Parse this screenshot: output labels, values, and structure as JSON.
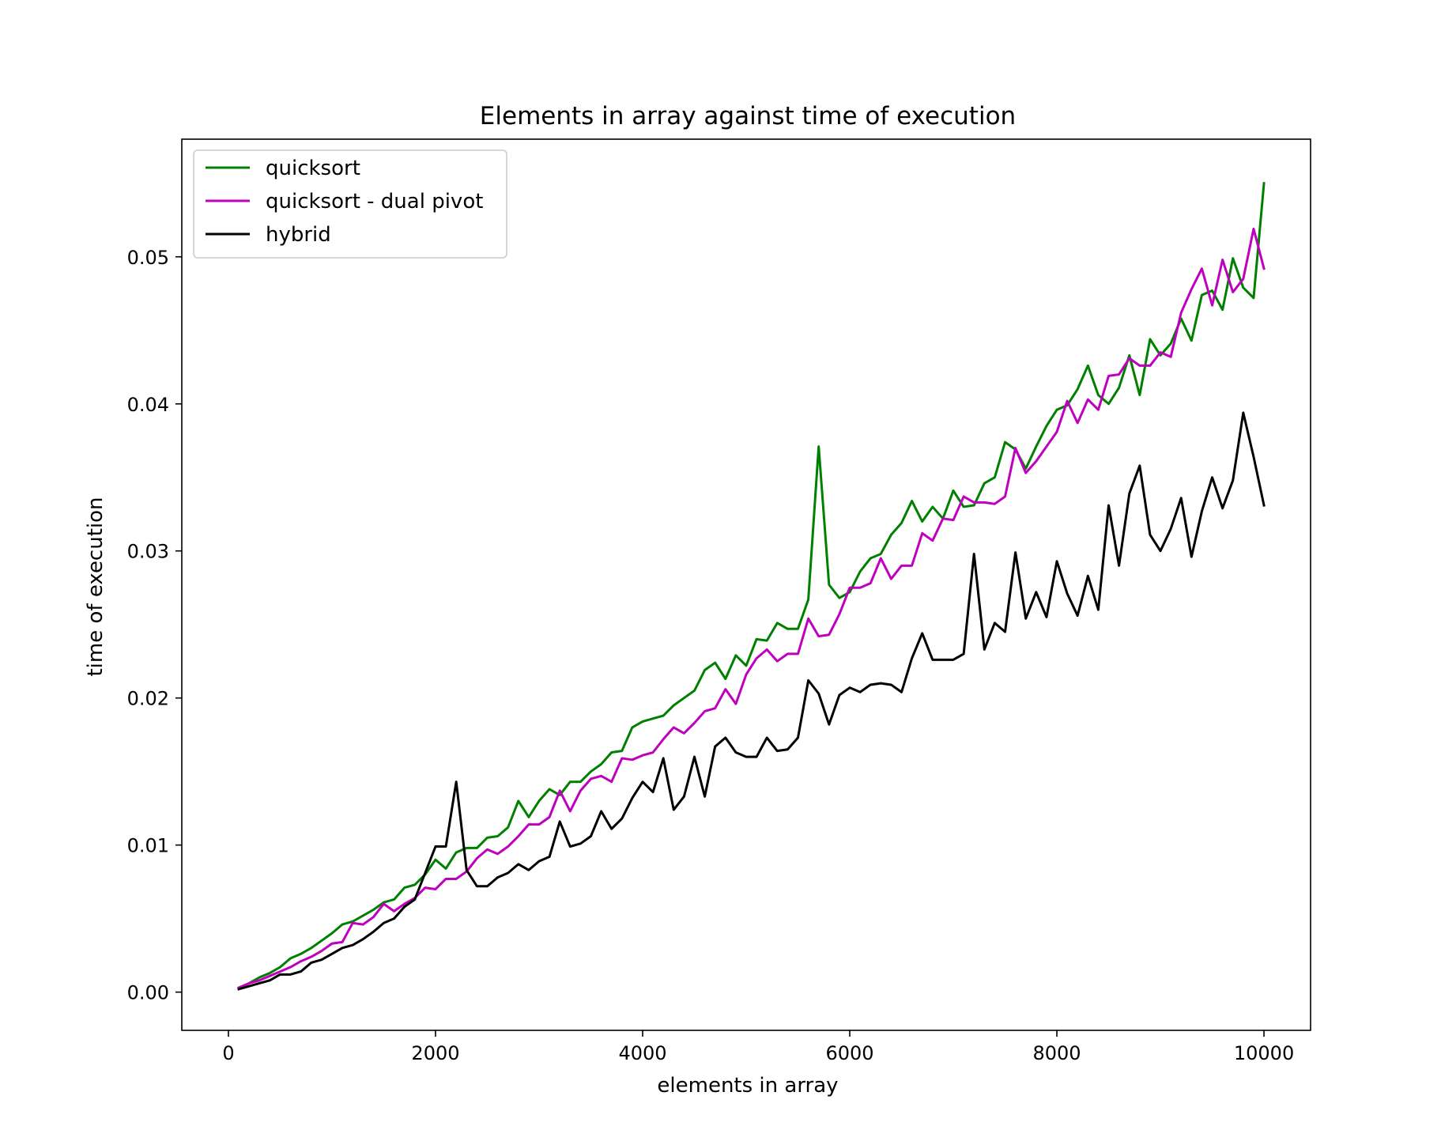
{
  "chart_data": {
    "type": "line",
    "title": "Elements in array against time of execution",
    "xlabel": "elements in array",
    "ylabel": "time of execution",
    "xlim": [
      -450,
      10450
    ],
    "ylim": [
      -0.0026,
      0.058
    ],
    "xticks": [
      0,
      2000,
      4000,
      6000,
      8000,
      10000
    ],
    "xtick_labels": [
      "0",
      "2000",
      "4000",
      "6000",
      "8000",
      "10000"
    ],
    "yticks": [
      0.0,
      0.01,
      0.02,
      0.03,
      0.04,
      0.05
    ],
    "ytick_labels": [
      "0.00",
      "0.01",
      "0.02",
      "0.03",
      "0.04",
      "0.05"
    ],
    "grid": false,
    "legend_position": "upper-left",
    "x": [
      100,
      200,
      300,
      400,
      500,
      600,
      700,
      800,
      900,
      1000,
      1100,
      1200,
      1300,
      1400,
      1500,
      1600,
      1700,
      1800,
      1900,
      2000,
      2100,
      2200,
      2300,
      2400,
      2500,
      2600,
      2700,
      2800,
      2900,
      3000,
      3100,
      3200,
      3300,
      3400,
      3500,
      3600,
      3700,
      3800,
      3900,
      4000,
      4100,
      4200,
      4300,
      4400,
      4500,
      4600,
      4700,
      4800,
      4900,
      5000,
      5100,
      5200,
      5300,
      5400,
      5500,
      5600,
      5700,
      5800,
      5900,
      6000,
      6100,
      6200,
      6300,
      6400,
      6500,
      6600,
      6700,
      6800,
      6900,
      7000,
      7100,
      7200,
      7300,
      7400,
      7500,
      7600,
      7700,
      7800,
      7900,
      8000,
      8100,
      8200,
      8300,
      8400,
      8500,
      8600,
      8700,
      8800,
      8900,
      9000,
      9100,
      9200,
      9300,
      9400,
      9500,
      9600,
      9700,
      9800,
      9900,
      10000
    ],
    "series": [
      {
        "name": "quicksort",
        "color": "#008000",
        "values": [
          0.0003,
          0.0006,
          0.001,
          0.0013,
          0.0017,
          0.0023,
          0.0026,
          0.003,
          0.0035,
          0.004,
          0.0046,
          0.0048,
          0.0052,
          0.0056,
          0.0061,
          0.0063,
          0.0071,
          0.0073,
          0.008,
          0.009,
          0.0084,
          0.0095,
          0.0098,
          0.0098,
          0.0105,
          0.0106,
          0.0112,
          0.013,
          0.0119,
          0.013,
          0.0138,
          0.0134,
          0.0143,
          0.0143,
          0.015,
          0.0155,
          0.0163,
          0.0164,
          0.018,
          0.0184,
          0.0186,
          0.0188,
          0.0195,
          0.02,
          0.0205,
          0.0219,
          0.0224,
          0.0213,
          0.0229,
          0.0222,
          0.024,
          0.0239,
          0.0251,
          0.0247,
          0.0247,
          0.0267,
          0.0371,
          0.0277,
          0.0268,
          0.0272,
          0.0286,
          0.0295,
          0.0298,
          0.0311,
          0.0319,
          0.0334,
          0.032,
          0.033,
          0.0322,
          0.0341,
          0.033,
          0.0331,
          0.0346,
          0.035,
          0.0374,
          0.0369,
          0.0356,
          0.0371,
          0.0385,
          0.0396,
          0.0399,
          0.041,
          0.0426,
          0.0406,
          0.04,
          0.0411,
          0.0433,
          0.0406,
          0.0444,
          0.0433,
          0.0441,
          0.0458,
          0.0443,
          0.0474,
          0.0477,
          0.0464,
          0.0499,
          0.0479,
          0.0472,
          0.055
        ]
      },
      {
        "name": "quicksort - dual pivot",
        "color": "#bf00bf",
        "values": [
          0.0003,
          0.0006,
          0.0008,
          0.0011,
          0.0014,
          0.0017,
          0.0021,
          0.0024,
          0.0028,
          0.0033,
          0.0034,
          0.0047,
          0.0046,
          0.0051,
          0.006,
          0.0055,
          0.006,
          0.0064,
          0.0071,
          0.007,
          0.0077,
          0.0077,
          0.0082,
          0.0091,
          0.0097,
          0.0094,
          0.0099,
          0.0106,
          0.0114,
          0.0114,
          0.0119,
          0.0137,
          0.0123,
          0.0137,
          0.0145,
          0.0147,
          0.0143,
          0.0159,
          0.0158,
          0.0161,
          0.0163,
          0.0172,
          0.018,
          0.0176,
          0.0183,
          0.0191,
          0.0193,
          0.0206,
          0.0196,
          0.0216,
          0.0227,
          0.0233,
          0.0225,
          0.023,
          0.023,
          0.0254,
          0.0242,
          0.0243,
          0.0257,
          0.0275,
          0.0275,
          0.0278,
          0.0295,
          0.0281,
          0.029,
          0.029,
          0.0312,
          0.0307,
          0.0322,
          0.0321,
          0.0337,
          0.0333,
          0.0333,
          0.0332,
          0.0337,
          0.037,
          0.0353,
          0.0361,
          0.0371,
          0.0381,
          0.0402,
          0.0387,
          0.0403,
          0.0396,
          0.0419,
          0.042,
          0.0431,
          0.0426,
          0.0426,
          0.0435,
          0.0432,
          0.0462,
          0.0478,
          0.0492,
          0.0467,
          0.0498,
          0.0476,
          0.0485,
          0.0519,
          0.0492
        ]
      },
      {
        "name": "hybrid",
        "color": "#000000",
        "values": [
          0.0002,
          0.0004,
          0.0006,
          0.0008,
          0.0012,
          0.0012,
          0.0014,
          0.002,
          0.0022,
          0.0026,
          0.003,
          0.0032,
          0.0036,
          0.0041,
          0.0047,
          0.005,
          0.0058,
          0.0063,
          0.0081,
          0.0099,
          0.0099,
          0.0143,
          0.0083,
          0.0072,
          0.0072,
          0.0078,
          0.0081,
          0.0087,
          0.0083,
          0.0089,
          0.0092,
          0.0116,
          0.0099,
          0.0101,
          0.0106,
          0.0123,
          0.0111,
          0.0118,
          0.0132,
          0.0143,
          0.0136,
          0.0159,
          0.0124,
          0.0133,
          0.016,
          0.0133,
          0.0167,
          0.0173,
          0.0163,
          0.016,
          0.016,
          0.0173,
          0.0164,
          0.0165,
          0.0173,
          0.0212,
          0.0203,
          0.0182,
          0.0202,
          0.0207,
          0.0204,
          0.0209,
          0.021,
          0.0209,
          0.0204,
          0.0227,
          0.0244,
          0.0226,
          0.0226,
          0.0226,
          0.023,
          0.0298,
          0.0233,
          0.0251,
          0.0245,
          0.0299,
          0.0254,
          0.0272,
          0.0255,
          0.0293,
          0.0271,
          0.0256,
          0.0283,
          0.026,
          0.0331,
          0.029,
          0.0339,
          0.0358,
          0.0311,
          0.03,
          0.0315,
          0.0336,
          0.0296,
          0.0327,
          0.035,
          0.0329,
          0.0348,
          0.0394,
          0.0364,
          0.0331
        ]
      }
    ]
  }
}
